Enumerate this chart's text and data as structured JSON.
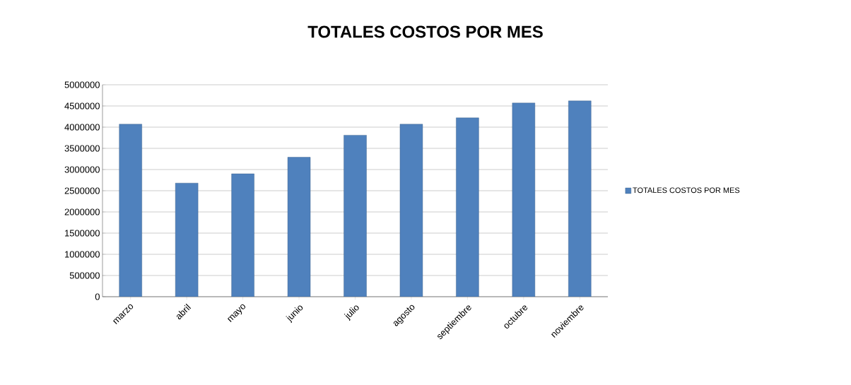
{
  "chart_data": {
    "type": "bar",
    "title": "TOTALES COSTOS POR MES",
    "categories": [
      "marzo",
      "abril",
      "mayo",
      "junio",
      "julio",
      "agosto",
      "septiembre",
      "octubre",
      "noviembre"
    ],
    "series": [
      {
        "name": "TOTALES COSTOS POR MES",
        "color": "#4f81bd",
        "values": [
          4070000,
          2680000,
          2900000,
          3290000,
          3810000,
          4070000,
          4220000,
          4570000,
          4620000
        ]
      }
    ],
    "ylim": [
      0,
      5000000
    ],
    "yticks": [
      0,
      500000,
      1000000,
      1500000,
      2000000,
      2500000,
      3000000,
      3500000,
      4000000,
      4500000,
      5000000
    ],
    "grid": "y",
    "legend": "right"
  }
}
